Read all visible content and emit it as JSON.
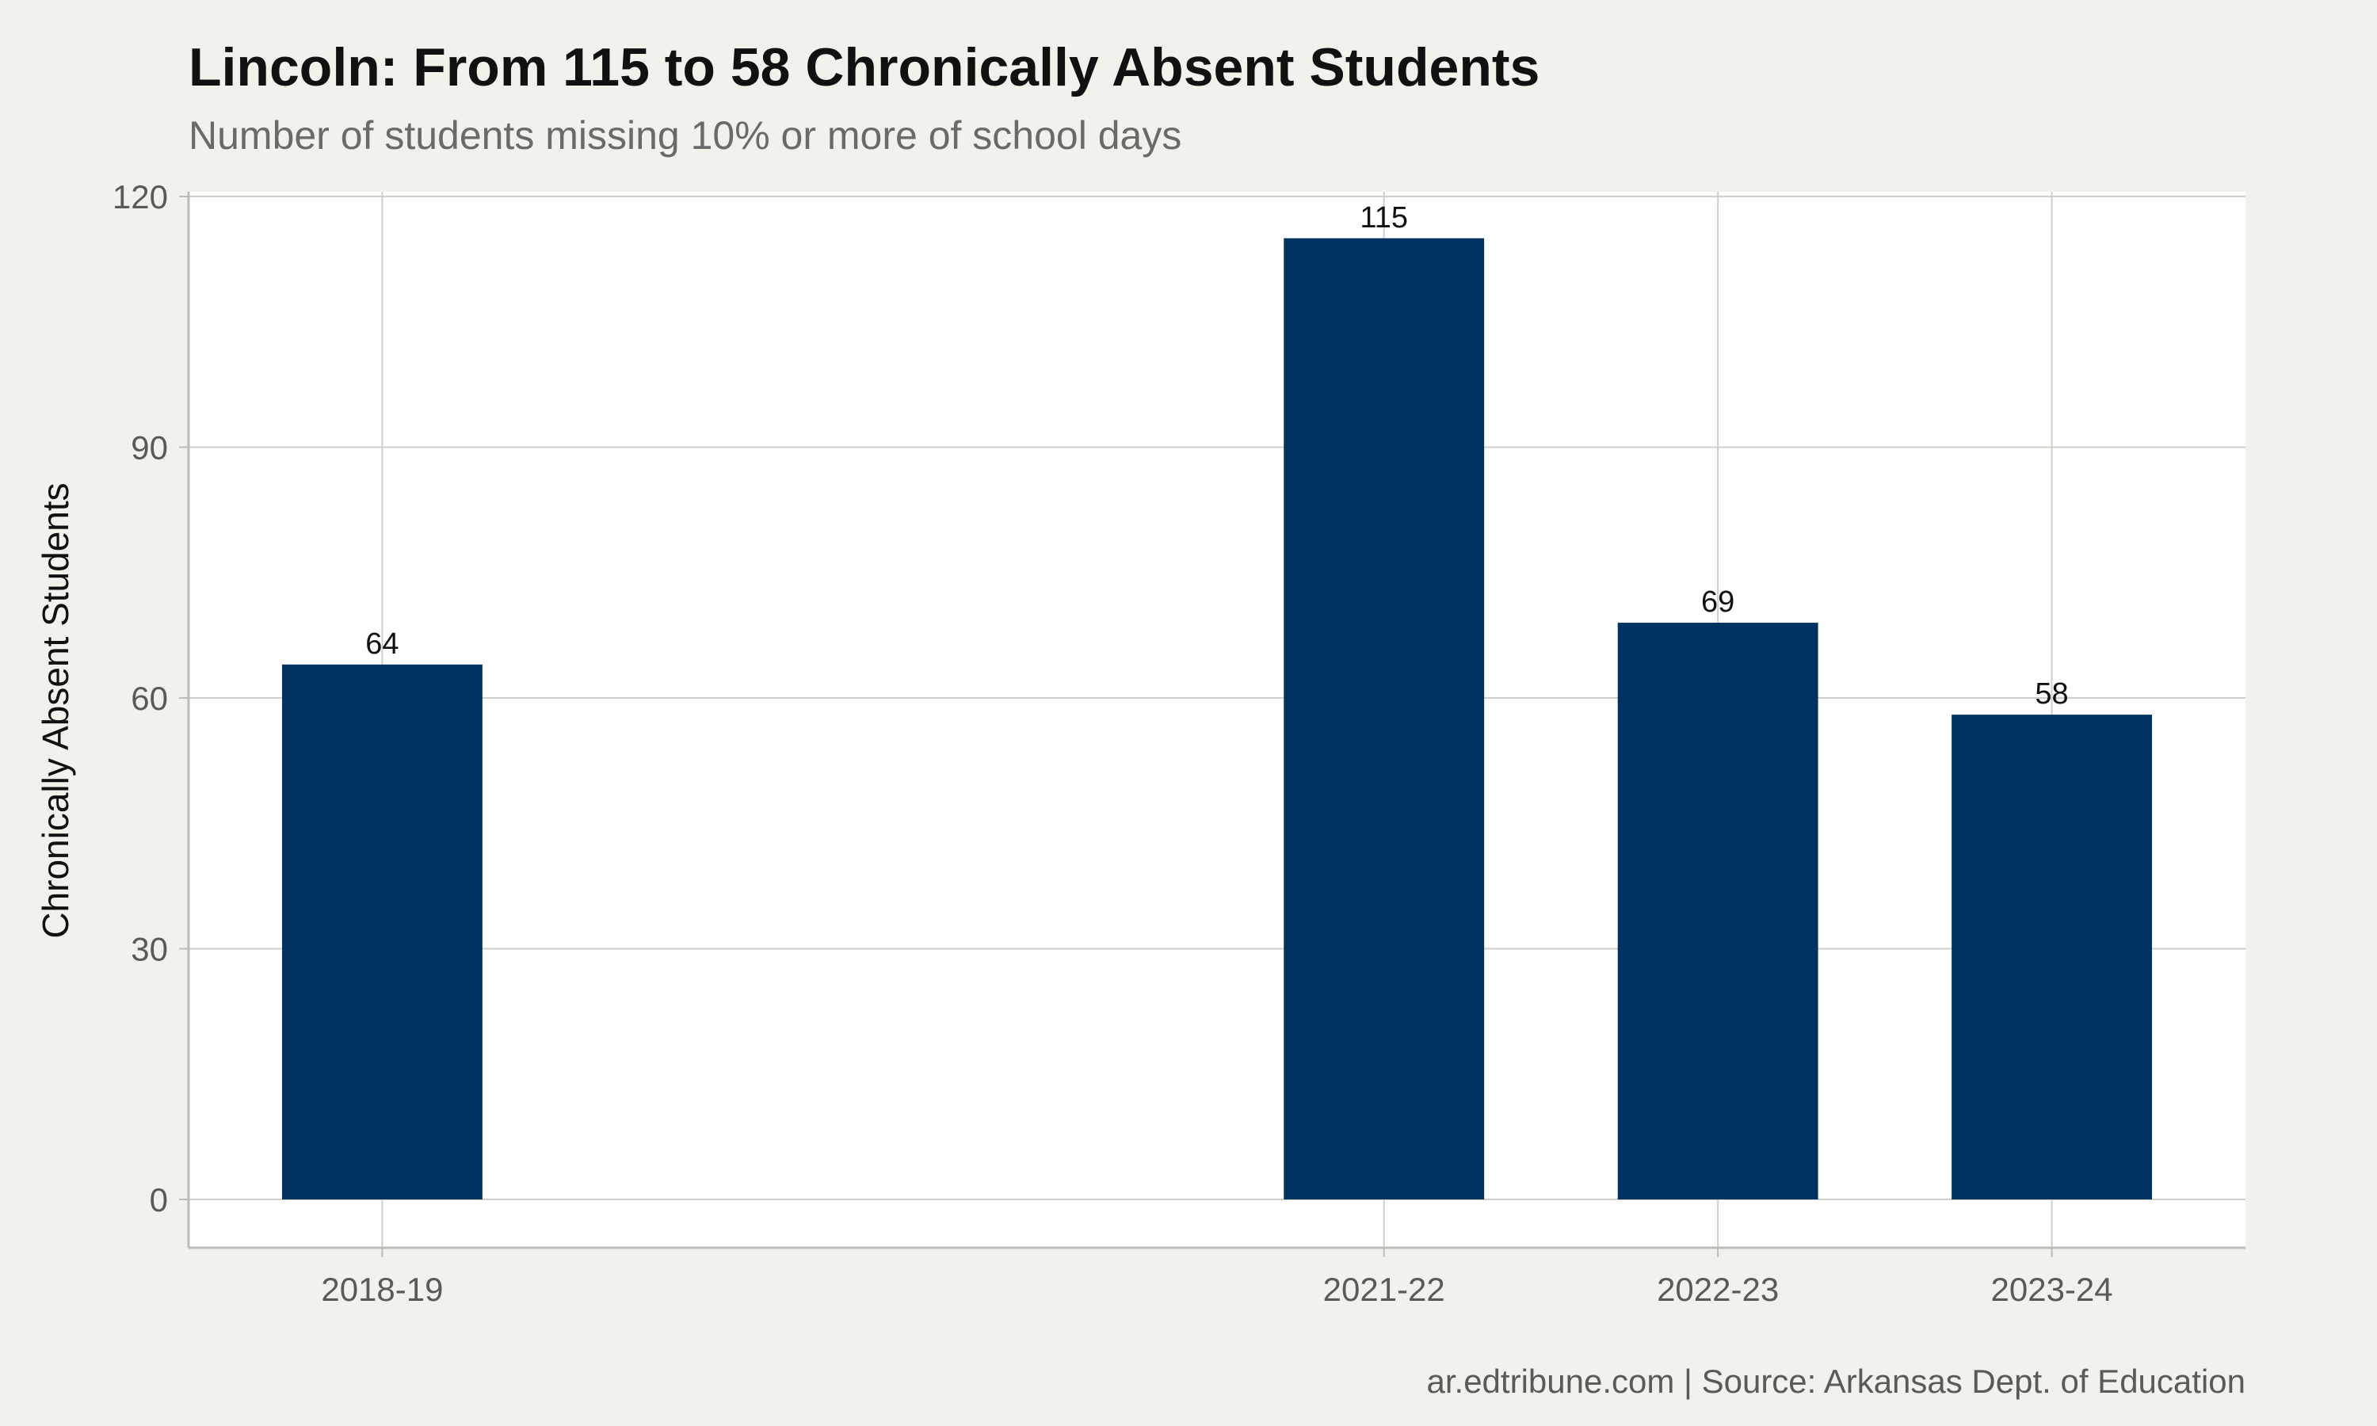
{
  "chart_data": {
    "type": "bar",
    "title": "Lincoln: From 115 to 58 Chronically Absent Students",
    "subtitle": "Number of students missing 10% or more of school days",
    "xlabel": "",
    "ylabel": "Chronically Absent Students",
    "caption": "ar.edtribune.com | Source: Arkansas Dept. of Education",
    "categories": [
      "2018-19",
      "2021-22",
      "2022-23",
      "2023-24"
    ],
    "x_positions": [
      2018,
      2021,
      2022,
      2023
    ],
    "values": [
      64,
      115,
      69,
      58
    ],
    "data_labels": [
      "64",
      "115",
      "69",
      "58"
    ],
    "ylim": [
      0,
      120
    ],
    "yticks": [
      0,
      30,
      60,
      90,
      120
    ],
    "ytick_labels": [
      "0",
      "30",
      "60",
      "90",
      "120"
    ],
    "grid": true,
    "legend": "none",
    "colors": {
      "bar": "#003262",
      "background": "#f3f1ec",
      "panel": "#ffffff",
      "grid": "#cfcfca"
    }
  }
}
